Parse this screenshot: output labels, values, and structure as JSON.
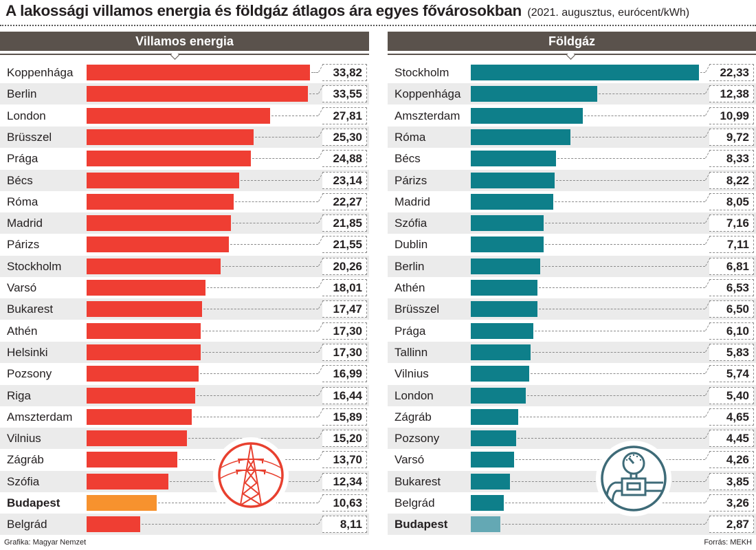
{
  "header": {
    "title": "A lakossági villamos energia és földgáz átlagos ára egyes fővárosokban",
    "subtitle": "(2021. augusztus, eurócent/kWh)"
  },
  "footer": {
    "credit": "Grafika: Magyar Nemzet",
    "source": "Forrás: MEKH"
  },
  "colors": {
    "electricity_bar": "#ef3e33",
    "electricity_highlight": "#f7922e",
    "gas_bar": "#0e7f8a",
    "gas_highlight": "#64a8b4",
    "header_bg": "#5a524c",
    "row_shade": "#ebebeb"
  },
  "icons": {
    "left": "power-pylon-icon",
    "right": "gas-meter-icon"
  },
  "chart_data": [
    {
      "type": "bar",
      "orientation": "horizontal",
      "title": "Villamos energia",
      "unit": "eurócent/kWh",
      "highlight": "Budapest",
      "categories": [
        "Koppenhága",
        "Berlin",
        "London",
        "Brüsszel",
        "Prága",
        "Bécs",
        "Róma",
        "Madrid",
        "Párizs",
        "Stockholm",
        "Varsó",
        "Bukarest",
        "Athén",
        "Helsinki",
        "Pozsony",
        "Riga",
        "Amszterdam",
        "Vilnius",
        "Zágráb",
        "Szófia",
        "Budapest",
        "Belgrád"
      ],
      "values": [
        33.82,
        33.55,
        27.81,
        25.3,
        24.88,
        23.14,
        22.27,
        21.85,
        21.55,
        20.26,
        18.01,
        17.47,
        17.3,
        17.3,
        16.99,
        16.44,
        15.89,
        15.2,
        13.7,
        12.34,
        10.63,
        8.11
      ],
      "labels": [
        "33,82",
        "33,55",
        "27,81",
        "25,30",
        "24,88",
        "23,14",
        "22,27",
        "21,85",
        "21,55",
        "20,26",
        "18,01",
        "17,47",
        "17,30",
        "17,30",
        "16,99",
        "16,44",
        "15,89",
        "15,20",
        "13,70",
        "12,34",
        "10,63",
        "8,11"
      ],
      "xlim": [
        0,
        34
      ]
    },
    {
      "type": "bar",
      "orientation": "horizontal",
      "title": "Földgáz",
      "unit": "eurócent/kWh",
      "highlight": "Budapest",
      "categories": [
        "Stockholm",
        "Koppenhága",
        "Amszterdam",
        "Róma",
        "Bécs",
        "Párizs",
        "Madrid",
        "Szófia",
        "Dublin",
        "Berlin",
        "Athén",
        "Brüsszel",
        "Prága",
        "Tallinn",
        "Vilnius",
        "London",
        "Zágráb",
        "Pozsony",
        "Varsó",
        "Bukarest",
        "Belgrád",
        "Budapest"
      ],
      "values": [
        22.33,
        12.38,
        10.99,
        9.72,
        8.33,
        8.22,
        8.05,
        7.16,
        7.11,
        6.81,
        6.53,
        6.5,
        6.1,
        5.83,
        5.74,
        5.4,
        4.65,
        4.45,
        4.26,
        3.85,
        3.26,
        2.87
      ],
      "labels": [
        "22,33",
        "12,38",
        "10,99",
        "9,72",
        "8,33",
        "8,22",
        "8,05",
        "7,16",
        "7,11",
        "6,81",
        "6,53",
        "6,50",
        "6,10",
        "5,83",
        "5,74",
        "5,40",
        "4,65",
        "4,45",
        "4,26",
        "3,85",
        "3,26",
        "2,87"
      ],
      "xlim": [
        0,
        22.5
      ]
    }
  ]
}
